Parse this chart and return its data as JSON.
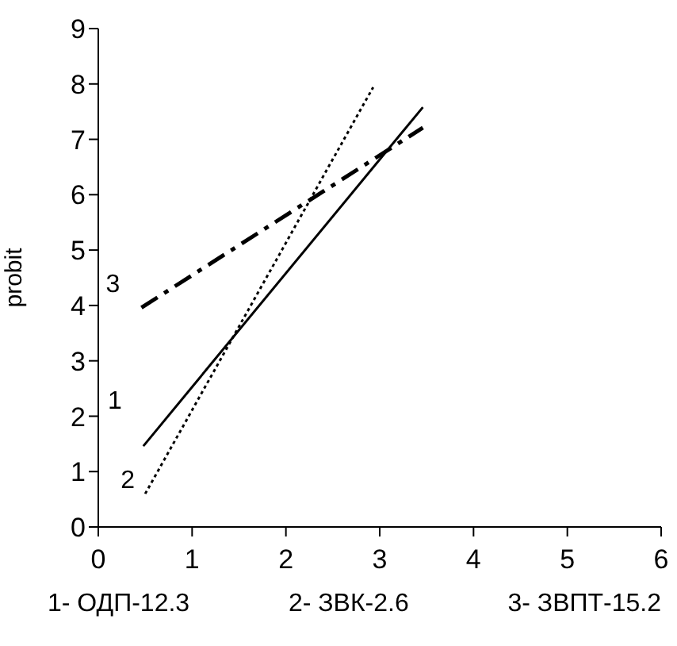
{
  "chart_data": {
    "type": "line",
    "ylabel": "probit",
    "xlim": [
      0,
      6
    ],
    "xticks": [
      0,
      1,
      2,
      3,
      4,
      5,
      6
    ],
    "ylim": [
      0,
      9
    ],
    "yticks": [
      0,
      1,
      2,
      3,
      4,
      5,
      6,
      7,
      8,
      9
    ],
    "grid": false,
    "legend": false,
    "marker": "none",
    "series": [
      {
        "name": "1",
        "color": "#000000",
        "line_style": "solid",
        "x": [
          0.48,
          3.46
        ],
        "values": [
          1.46,
          7.58
        ]
      },
      {
        "name": "2",
        "color": "#000000",
        "line_style": "dotted",
        "x": [
          0.5,
          2.93
        ],
        "values": [
          0.6,
          7.94
        ]
      },
      {
        "name": "3",
        "color": "#000000",
        "line_style": "dashed",
        "x": [
          0.46,
          3.46
        ],
        "values": [
          3.96,
          7.21
        ]
      }
    ],
    "annotations": [
      "1- ОДП-12.3",
      "2- ЗВК-2.6",
      "3- ЗВПТ-15.2"
    ]
  }
}
